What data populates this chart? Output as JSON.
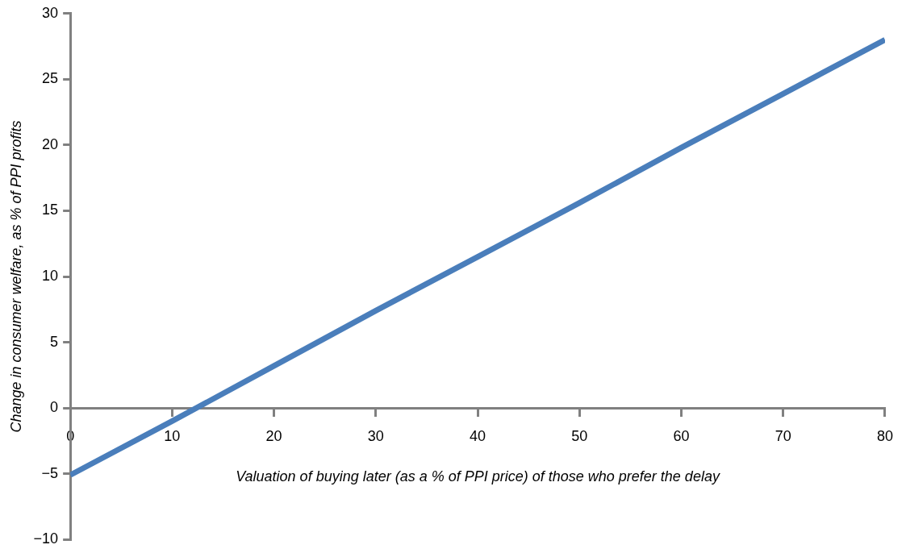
{
  "chart_data": {
    "type": "line",
    "xlabel": "Valuation of buying later (as a % of PPI price) of those who prefer the delay",
    "ylabel": "Change in consumer welfare, as % of PPI profits",
    "x": [
      0,
      10,
      20,
      30,
      40,
      50,
      60,
      70,
      80
    ],
    "series": [
      {
        "color": "#4a7ebb",
        "values": [
          -5.1,
          -1,
          3.2,
          7.4,
          11.5,
          15.6,
          19.8,
          23.9,
          28
        ]
      }
    ],
    "xlim": [
      0,
      80
    ],
    "xticks": [
      0,
      10,
      20,
      30,
      40,
      50,
      60,
      70,
      80
    ],
    "ylim": [
      -10,
      30
    ],
    "yticks": [
      {
        "value": -10,
        "label": "−10"
      },
      {
        "value": -5,
        "label": "−5"
      },
      0,
      5,
      10,
      15,
      20,
      25,
      30
    ],
    "grid": false,
    "legend": false,
    "marker": "none",
    "line_style": "solid"
  }
}
